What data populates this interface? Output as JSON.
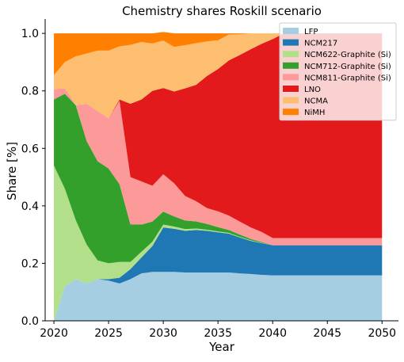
{
  "chart_data": {
    "type": "area",
    "stacked": true,
    "title": "Chemistry shares Roskill scenario",
    "xlabel": "Year",
    "ylabel": "Share [%]",
    "xlim": [
      2019.2,
      2051.5
    ],
    "ylim": [
      0.0,
      1.05
    ],
    "xticks": [
      2020,
      2025,
      2030,
      2035,
      2040,
      2045,
      2050
    ],
    "yticks": [
      0.0,
      0.2,
      0.4,
      0.6,
      0.8,
      1.0
    ],
    "xtick_labels": [
      "2020",
      "2025",
      "2030",
      "2035",
      "2040",
      "2045",
      "2050"
    ],
    "ytick_labels": [
      "0.0",
      "0.2",
      "0.4",
      "0.6",
      "0.8",
      "1.0"
    ],
    "grid": false,
    "legend_position": "top-right",
    "x": [
      2020,
      2021,
      2022,
      2023,
      2024,
      2025,
      2026,
      2027,
      2028,
      2029,
      2030,
      2031,
      2032,
      2033,
      2034,
      2035,
      2036,
      2037,
      2038,
      2039,
      2040,
      2041,
      2042,
      2043,
      2044,
      2045,
      2046,
      2047,
      2048,
      2049,
      2050
    ],
    "series": [
      {
        "name": "LFP",
        "color": "#a6cee3",
        "values": [
          0.0,
          0.12,
          0.145,
          0.13,
          0.145,
          0.14,
          0.13,
          0.145,
          0.165,
          0.17,
          0.17,
          0.17,
          0.168,
          0.168,
          0.168,
          0.168,
          0.168,
          0.165,
          0.163,
          0.16,
          0.158,
          0.158,
          0.158,
          0.158,
          0.158,
          0.158,
          0.158,
          0.158,
          0.158,
          0.158,
          0.158
        ]
      },
      {
        "name": "NCM217",
        "color": "#1f78b4",
        "values": [
          0.0,
          0.0,
          0.0,
          0.0,
          0.0,
          0.005,
          0.02,
          0.035,
          0.055,
          0.09,
          0.155,
          0.15,
          0.145,
          0.148,
          0.145,
          0.14,
          0.135,
          0.125,
          0.115,
          0.11,
          0.105,
          0.105,
          0.105,
          0.105,
          0.105,
          0.105,
          0.105,
          0.105,
          0.105,
          0.105,
          0.105
        ]
      },
      {
        "name": "NCM622-Graphite (Si)",
        "color": "#b2df8a",
        "values": [
          0.54,
          0.34,
          0.205,
          0.135,
          0.065,
          0.055,
          0.055,
          0.025,
          0.02,
          0.015,
          0.01,
          0.008,
          0.006,
          0.005,
          0.004,
          0.003,
          0.003,
          0.002,
          0.002,
          0.001,
          0.0,
          0.0,
          0.0,
          0.0,
          0.0,
          0.0,
          0.0,
          0.0,
          0.0,
          0.0,
          0.0
        ]
      },
      {
        "name": "NCM712-Graphite (Si)",
        "color": "#33a02c",
        "values": [
          0.23,
          0.33,
          0.4,
          0.36,
          0.345,
          0.33,
          0.27,
          0.13,
          0.095,
          0.07,
          0.045,
          0.035,
          0.03,
          0.025,
          0.02,
          0.015,
          0.01,
          0.008,
          0.005,
          0.003,
          0.0,
          0.0,
          0.0,
          0.0,
          0.0,
          0.0,
          0.0,
          0.0,
          0.0,
          0.0,
          0.0
        ]
      },
      {
        "name": "NCM811-Graphite (Si)",
        "color": "#fb9a99",
        "values": [
          0.035,
          0.02,
          0.0,
          0.13,
          0.175,
          0.175,
          0.29,
          0.165,
          0.15,
          0.125,
          0.13,
          0.115,
          0.085,
          0.07,
          0.055,
          0.055,
          0.05,
          0.045,
          0.04,
          0.035,
          0.025,
          0.025,
          0.025,
          0.025,
          0.025,
          0.025,
          0.025,
          0.025,
          0.025,
          0.025,
          0.025
        ]
      },
      {
        "name": "LNO",
        "color": "#e31a1c",
        "values": [
          0.0,
          0.0,
          0.0,
          0.0,
          0.0,
          0.0,
          0.005,
          0.255,
          0.285,
          0.33,
          0.3,
          0.32,
          0.375,
          0.405,
          0.46,
          0.495,
          0.54,
          0.58,
          0.62,
          0.655,
          0.692,
          0.712,
          0.712,
          0.712,
          0.712,
          0.712,
          0.712,
          0.712,
          0.712,
          0.712,
          0.712
        ]
      },
      {
        "name": "NCMA",
        "color": "#fdbf6f",
        "values": [
          0.05,
          0.09,
          0.17,
          0.175,
          0.21,
          0.235,
          0.185,
          0.205,
          0.2,
          0.165,
          0.165,
          0.155,
          0.15,
          0.145,
          0.12,
          0.1,
          0.09,
          0.072,
          0.055,
          0.036,
          0.02,
          0.0,
          0.0,
          0.0,
          0.0,
          0.0,
          0.0,
          0.0,
          0.0,
          0.0,
          0.0
        ]
      },
      {
        "name": "NiMH",
        "color": "#ff7f00",
        "values": [
          0.145,
          0.1,
          0.08,
          0.07,
          0.06,
          0.06,
          0.045,
          0.04,
          0.03,
          0.035,
          0.03,
          0.047,
          0.041,
          0.034,
          0.028,
          0.024,
          0.004,
          0.003,
          0.0,
          0.0,
          0.0,
          0.0,
          0.0,
          0.0,
          0.0,
          0.0,
          0.0,
          0.0,
          0.0,
          0.0,
          0.0
        ]
      }
    ]
  }
}
